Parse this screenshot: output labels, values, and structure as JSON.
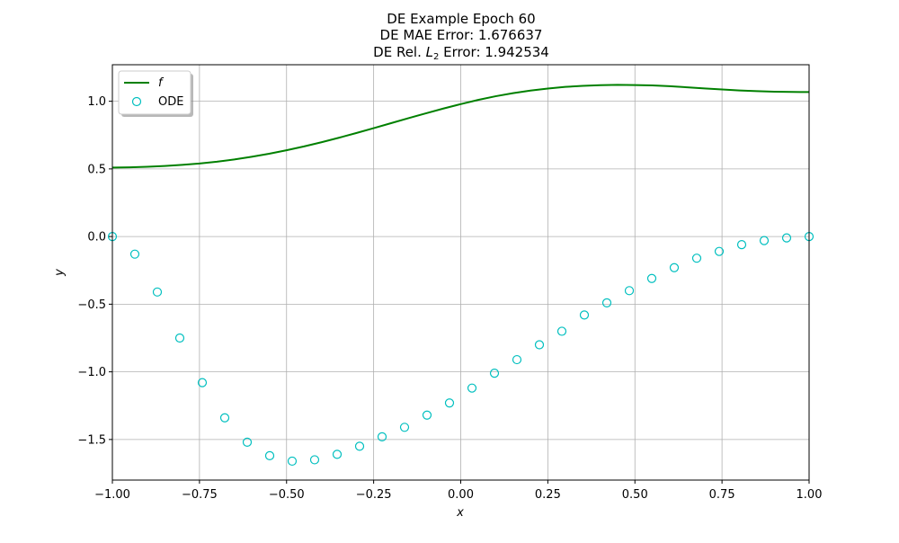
{
  "chart_data": {
    "type": "line",
    "title_lines": [
      "DE Example Epoch 60",
      "DE MAE Error: 1.676637"
    ],
    "title_l2": {
      "prefix": "DE Rel. ",
      "symbol": "L",
      "subscript": "2",
      "suffix": " Error: 1.942534"
    },
    "xlabel": "x",
    "ylabel": "y",
    "xlim": [
      -1.0,
      1.0
    ],
    "ylim": [
      -1.8,
      1.27
    ],
    "xticks": [
      -1.0,
      -0.75,
      -0.5,
      -0.25,
      0.0,
      0.25,
      0.5,
      0.75,
      1.0
    ],
    "xtick_labels": [
      "−1.00",
      "−0.75",
      "−0.50",
      "−0.25",
      "0.00",
      "0.25",
      "0.50",
      "0.75",
      "1.00"
    ],
    "yticks": [
      -1.5,
      -1.0,
      -0.5,
      0.0,
      0.5,
      1.0
    ],
    "ytick_labels": [
      "−1.5",
      "−1.0",
      "−0.5",
      "0.0",
      "0.5",
      "1.0"
    ],
    "grid": true,
    "legend_position": "top-left",
    "series": [
      {
        "name": "f",
        "style": "line",
        "color": "#008000",
        "x": [
          -1.0,
          -0.95,
          -0.9,
          -0.85,
          -0.8,
          -0.75,
          -0.7,
          -0.65,
          -0.6,
          -0.55,
          -0.5,
          -0.45,
          -0.4,
          -0.35,
          -0.3,
          -0.25,
          -0.2,
          -0.15,
          -0.1,
          -0.05,
          0.0,
          0.05,
          0.1,
          0.15,
          0.2,
          0.25,
          0.3,
          0.35,
          0.4,
          0.45,
          0.5,
          0.55,
          0.6,
          0.65,
          0.7,
          0.75,
          0.8,
          0.85,
          0.9,
          0.95,
          1.0
        ],
        "y": [
          0.51,
          0.512,
          0.516,
          0.522,
          0.53,
          0.54,
          0.553,
          0.57,
          0.59,
          0.612,
          0.638,
          0.666,
          0.697,
          0.73,
          0.765,
          0.801,
          0.838,
          0.875,
          0.911,
          0.946,
          0.979,
          1.01,
          1.037,
          1.06,
          1.079,
          1.094,
          1.106,
          1.114,
          1.119,
          1.121,
          1.12,
          1.117,
          1.111,
          1.103,
          1.095,
          1.087,
          1.08,
          1.075,
          1.071,
          1.069,
          1.068
        ]
      },
      {
        "name": "ODE",
        "style": "scatter",
        "color": "#00bfbf",
        "x": [
          -1.0,
          -0.9355,
          -0.871,
          -0.8065,
          -0.7419,
          -0.6774,
          -0.6129,
          -0.5484,
          -0.4839,
          -0.4194,
          -0.3548,
          -0.2903,
          -0.2258,
          -0.1613,
          -0.0968,
          -0.0323,
          0.0323,
          0.0968,
          0.1613,
          0.2258,
          0.2903,
          0.3548,
          0.4194,
          0.4839,
          0.5484,
          0.6129,
          0.6774,
          0.7419,
          0.8065,
          0.871,
          0.9355,
          1.0
        ],
        "y": [
          0.0,
          -0.13,
          -0.41,
          -0.75,
          -1.08,
          -1.34,
          -1.52,
          -1.62,
          -1.66,
          -1.65,
          -1.61,
          -1.55,
          -1.48,
          -1.41,
          -1.32,
          -1.23,
          -1.12,
          -1.01,
          -0.91,
          -0.8,
          -0.7,
          -0.58,
          -0.49,
          -0.4,
          -0.31,
          -0.23,
          -0.16,
          -0.11,
          -0.06,
          -0.03,
          -0.01,
          0.0
        ]
      }
    ]
  }
}
